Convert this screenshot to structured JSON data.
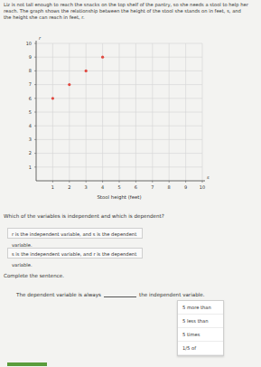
{
  "chart_data": {
    "type": "scatter",
    "x_label": "Stool height (feet)",
    "annotations": [
      "s",
      "r"
    ],
    "x": [
      1,
      2,
      3,
      4
    ],
    "values": [
      6,
      7,
      8,
      9
    ],
    "color": "#e0483f",
    "marker": "circle",
    "xlim": [
      0,
      10
    ],
    "xticks": [
      1,
      2,
      3,
      4,
      5,
      6,
      7,
      8,
      9,
      10
    ],
    "ylim": [
      0,
      10
    ],
    "yticks": [
      1,
      2,
      3,
      4,
      5,
      6,
      7,
      8,
      9,
      10
    ],
    "grid": true
  },
  "problem": {
    "intro": "Liz is not tall enough to reach the snacks on the top shelf of the pantry, so she needs a stool to help her reach. The graph shows the relationship between the height of the stool she stands on in feet, s, and the height she can reach in feet, r.",
    "question": "Which of the variables is independent and which is dependent?",
    "choices": [
      "r is the independent variable, and s is the dependent variable.",
      "s is the independent variable, and r is the dependent variable."
    ],
    "instruction": "Complete the sentence.",
    "sentence_start": "The dependent variable is always",
    "sentence_end": "the independent variable.",
    "dropdown_options": [
      "5 more than",
      "5 less than",
      "5 times",
      "1/5 of"
    ]
  }
}
